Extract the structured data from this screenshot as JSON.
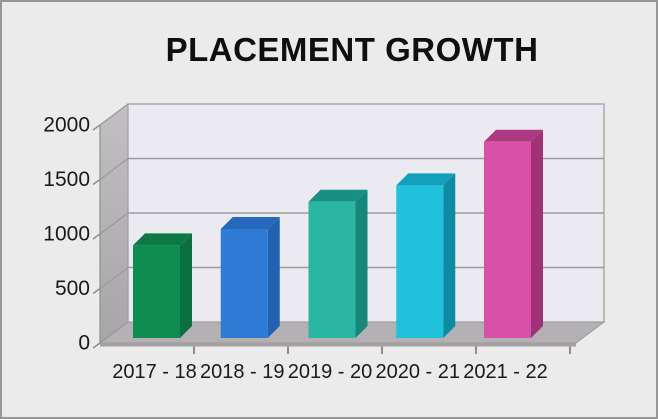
{
  "window": {
    "title": "PLACEMENT GROWTH"
  },
  "chart_data": {
    "type": "bar",
    "style": "3d-column",
    "title": "PLACEMENT GROWTH",
    "categories": [
      "2017 - 18",
      "2018 - 19",
      "2019 - 20",
      "2020 - 21",
      "2021 - 22"
    ],
    "values": [
      850,
      1000,
      1250,
      1400,
      1800
    ],
    "xlabel": "",
    "ylabel": "",
    "ylim": [
      0,
      2000
    ],
    "yticks": [
      0,
      500,
      1000,
      1500,
      2000
    ],
    "grid": true,
    "legend": false,
    "bar_colors": [
      {
        "name": "green",
        "front": "#0F8C50",
        "top": "#0C7845",
        "side": "#09713F"
      },
      {
        "name": "blue",
        "front": "#2E7BD6",
        "top": "#2668BC",
        "side": "#2163B2"
      },
      {
        "name": "teal",
        "front": "#29B7A4",
        "top": "#179083",
        "side": "#15887B"
      },
      {
        "name": "cyan",
        "front": "#20C1DB",
        "top": "#12A0BA",
        "side": "#0D8BA3"
      },
      {
        "name": "magenta",
        "front": "#D850A8",
        "top": "#AC3A82",
        "side": "#A03378"
      }
    ],
    "palette": {
      "page_background": "#ECEBEC",
      "page_border": "#979797",
      "back_wall": "#ECEAF1",
      "left_wall_top": "#C2BFC2",
      "left_wall_bottom": "#A8A5A8",
      "floor": "#B4B1B4",
      "floor_lip": "#A39FA3",
      "gridline": "#9B999E",
      "tick": "#8F8F8F",
      "label_color": "#1A1A1A",
      "title_color": "#0F0F0F"
    }
  }
}
